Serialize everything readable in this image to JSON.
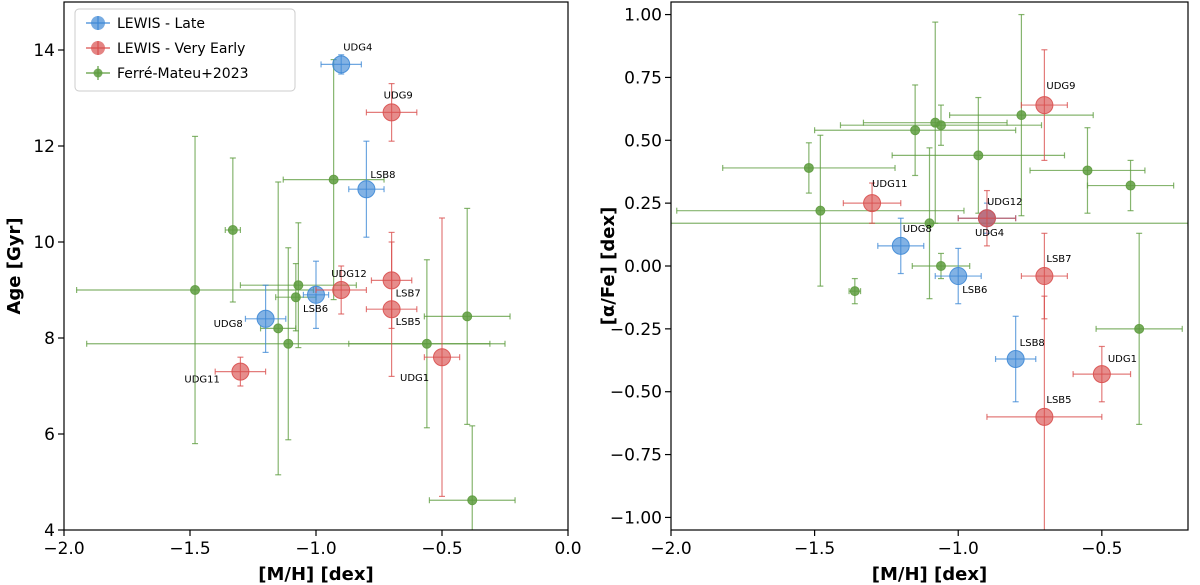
{
  "colors": {
    "late": "#3f89d6",
    "very_early": "#d9504f",
    "ferre": "#5e9c3f"
  },
  "chart_data": [
    {
      "type": "scatter",
      "title": "",
      "xlabel": "[M/H] [dex]",
      "ylabel": "Age [Gyr]",
      "xlim": [
        -2.0,
        0.0
      ],
      "ylim": [
        4,
        15
      ],
      "xticks": [
        -2.0,
        -1.5,
        -1.0,
        -0.5,
        0.0
      ],
      "xtick_labels": [
        "−2.0",
        "−1.5",
        "−1.0",
        "−0.5",
        "0.0"
      ],
      "yticks": [
        4,
        6,
        8,
        10,
        12,
        14
      ],
      "ytick_labels": [
        "4",
        "6",
        "8",
        "10",
        "12",
        "14"
      ],
      "legend": {
        "position": "top-left",
        "entries": [
          "LEWIS - Late",
          "LEWIS - Very Early",
          "Ferré-Mateu+2023"
        ]
      },
      "series": [
        {
          "name": "LEWIS - Late",
          "color_key": "late",
          "points": [
            {
              "label": "UDG4",
              "x": -0.9,
              "y": 13.7,
              "xerr": 0.08,
              "yerr": 0.2
            },
            {
              "label": "LSB8",
              "x": -0.8,
              "y": 11.1,
              "xerr": 0.07,
              "yerr": 1.0
            },
            {
              "label": "LSB6",
              "x": -1.0,
              "y": 8.9,
              "xerr": 0.05,
              "yerr": 0.7
            },
            {
              "label": "UDG8",
              "x": -1.2,
              "y": 8.4,
              "xerr": 0.08,
              "yerr": 0.7
            }
          ]
        },
        {
          "name": "LEWIS - Very Early",
          "color_key": "very_early",
          "points": [
            {
              "label": "UDG9",
              "x": -0.7,
              "y": 12.7,
              "xerr": 0.1,
              "yerr": 0.6
            },
            {
              "label": "UDG12",
              "x": -0.9,
              "y": 9.0,
              "xerr": 0.1,
              "yerr": 0.5
            },
            {
              "label": "LSB7",
              "x": -0.7,
              "y": 9.2,
              "xerr": 0.08,
              "yerr": 1.0
            },
            {
              "label": "LSB5",
              "x": -0.7,
              "y": 8.6,
              "xerr": 0.1,
              "yerr": 1.4
            },
            {
              "label": "UDG1",
              "x": -0.5,
              "y": 7.6,
              "xerr": 0.07,
              "yerr": 2.9
            },
            {
              "label": "UDG11",
              "x": -1.3,
              "y": 7.3,
              "xerr": 0.1,
              "yerr": 0.3
            }
          ]
        },
        {
          "name": "Ferré-Mateu+2023",
          "color_key": "ferre",
          "points": [
            {
              "x": -0.93,
              "y": 11.3,
              "xerr": 0.2,
              "yerr": 2.5
            },
            {
              "x": -1.33,
              "y": 10.25,
              "xerr": 0.03,
              "yerr": 1.5
            },
            {
              "x": -1.48,
              "y": 9.0,
              "xerr": 0.47,
              "yerr": 3.2
            },
            {
              "x": -1.07,
              "y": 9.1,
              "xerr": 0.23,
              "yerr": 1.3
            },
            {
              "x": -1.08,
              "y": 8.85,
              "xerr": 0.08,
              "yerr": 0.7
            },
            {
              "x": -1.15,
              "y": 8.2,
              "xerr": 0.07,
              "yerr": 3.05
            },
            {
              "x": -1.11,
              "y": 7.88,
              "xerr": 0.8,
              "yerr": 2.0
            },
            {
              "x": -0.56,
              "y": 7.88,
              "xerr": 0.31,
              "yerr": 1.75
            },
            {
              "x": -0.4,
              "y": 8.45,
              "xerr": 0.17,
              "yerr": 2.25
            },
            {
              "x": -0.38,
              "y": 4.62,
              "xerr": 0.17,
              "yerr": 1.55
            }
          ]
        }
      ]
    },
    {
      "type": "scatter",
      "title": "",
      "xlabel": "[M/H] [dex]",
      "ylabel": "[α/Fe] [dex]",
      "xlim": [
        -2.0,
        -0.2
      ],
      "ylim": [
        -1.05,
        1.05
      ],
      "xticks": [
        -2.0,
        -1.5,
        -1.0,
        -0.5
      ],
      "xtick_labels": [
        "−2.0",
        "−1.5",
        "−1.0",
        "−0.5"
      ],
      "yticks": [
        1.0,
        0.75,
        0.5,
        0.25,
        0.0,
        -0.25,
        -0.5,
        -0.75,
        -1.0
      ],
      "ytick_labels": [
        "1.00",
        "0.75",
        "0.50",
        "0.25",
        "0.00",
        "−0.25",
        "−0.50",
        "−0.75",
        "−1.00"
      ],
      "series": [
        {
          "name": "LEWIS - Late",
          "color_key": "late",
          "points": [
            {
              "label": "UDG8",
              "x": -1.2,
              "y": 0.08,
              "xerr": 0.08,
              "yerr": 0.11
            },
            {
              "label": "LSB6",
              "x": -1.0,
              "y": -0.04,
              "xerr": 0.08,
              "yerr": 0.11
            },
            {
              "label": "LSB8",
              "x": -0.8,
              "y": -0.37,
              "xerr": 0.07,
              "yerr": 0.17
            },
            {
              "label": "UDG4",
              "x": -0.9,
              "y": 0.19,
              "xerr": 0.1,
              "yerr": 0.06
            }
          ]
        },
        {
          "name": "LEWIS - Very Early",
          "color_key": "very_early",
          "points": [
            {
              "label": "UDG9",
              "x": -0.7,
              "y": 0.64,
              "xerr": 0.08,
              "yerr": 0.22
            },
            {
              "label": "UDG11",
              "x": -1.3,
              "y": 0.25,
              "xerr": 0.1,
              "yerr": 0.08
            },
            {
              "label": "UDG12",
              "x": -0.9,
              "y": 0.19,
              "xerr": 0.1,
              "yerr": 0.11
            },
            {
              "label": "LSB7",
              "x": -0.7,
              "y": -0.04,
              "xerr": 0.08,
              "yerr": 0.17
            },
            {
              "label": "UDG1",
              "x": -0.5,
              "y": -0.43,
              "xerr": 0.1,
              "yerr": 0.11
            },
            {
              "label": "LSB5",
              "x": -0.7,
              "y": -0.6,
              "xerr": 0.2,
              "yerr": 0.48
            }
          ]
        },
        {
          "name": "Ferré-Mateu+2023",
          "color_key": "ferre",
          "points": [
            {
              "x": -1.52,
              "y": 0.39,
              "xerr": 0.3,
              "yerr": 0.1
            },
            {
              "x": -1.48,
              "y": 0.22,
              "xerr": 0.5,
              "yerr": 0.3
            },
            {
              "x": -1.36,
              "y": -0.1,
              "xerr": 0.02,
              "yerr": 0.05
            },
            {
              "x": -1.15,
              "y": 0.54,
              "xerr": 0.35,
              "yerr": 0.18
            },
            {
              "x": -1.08,
              "y": 0.57,
              "xerr": 0.25,
              "yerr": 0.4
            },
            {
              "x": -1.06,
              "y": 0.56,
              "xerr": 0.35,
              "yerr": 0.08
            },
            {
              "x": -1.1,
              "y": 0.17,
              "xerr": 0.9,
              "yerr": 0.3
            },
            {
              "x": -1.06,
              "y": 0.0,
              "xerr": 0.1,
              "yerr": 0.05
            },
            {
              "x": -0.93,
              "y": 0.44,
              "xerr": 0.3,
              "yerr": 0.23
            },
            {
              "x": -0.78,
              "y": 0.6,
              "xerr": 0.25,
              "yerr": 0.4
            },
            {
              "x": -0.55,
              "y": 0.38,
              "xerr": 0.2,
              "yerr": 0.17
            },
            {
              "x": -0.4,
              "y": 0.32,
              "xerr": 0.15,
              "yerr": 0.1
            },
            {
              "x": -0.37,
              "y": -0.25,
              "xerr": 0.15,
              "yerr": 0.38
            }
          ]
        }
      ]
    }
  ]
}
